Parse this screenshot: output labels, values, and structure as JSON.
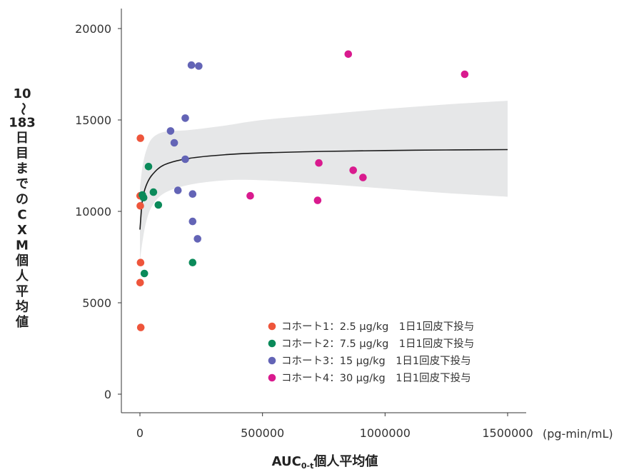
{
  "chart_data": {
    "type": "scatter",
    "xlabel": "AUC0-t個人平均値",
    "xlabel_main": "AUC",
    "xlabel_sub": "0-t",
    "xlabel_rest": "個人平均値",
    "ylabel": "10〜183日目までのCXM個人平均値",
    "x_unit": "(pg-min/mL)",
    "xlim": [
      0,
      1500000
    ],
    "ylim": [
      0,
      20000
    ],
    "x_ticks": [
      0,
      500000,
      1000000,
      1500000
    ],
    "x_tick_labels": [
      "0",
      "500000",
      "1000000",
      "1500000"
    ],
    "y_ticks": [
      0,
      5000,
      10000,
      15000,
      20000
    ],
    "y_tick_labels": [
      "0",
      "5000",
      "10000",
      "15000",
      "20000"
    ],
    "legend_position": "bottom-right",
    "colors": {
      "cohort1": "#ee553b",
      "cohort2": "#0b8a5a",
      "cohort3": "#6364b6",
      "cohort4": "#d91a8e",
      "band": "#e6e7e8",
      "curve": "#1a1a1a"
    },
    "series": [
      {
        "name": "コホート1：2.5 µg/kg　1日1回皮下投与",
        "color": "#ee553b",
        "points": [
          [
            2000,
            14000
          ],
          [
            1000,
            10850
          ],
          [
            1500,
            10300
          ],
          [
            2500,
            7200
          ],
          [
            1000,
            6100
          ],
          [
            3500,
            3650
          ]
        ]
      },
      {
        "name": "コホート2：7.5 µg/kg　1日1回皮下投与",
        "color": "#0b8a5a",
        "points": [
          [
            35000,
            12450
          ],
          [
            10000,
            10900
          ],
          [
            15000,
            10750
          ],
          [
            55000,
            11050
          ],
          [
            75000,
            10350
          ],
          [
            18000,
            6600
          ],
          [
            215000,
            7200
          ]
        ]
      },
      {
        "name": "コホート3：15 µg/kg　1日1回皮下投与",
        "color": "#6364b6",
        "points": [
          [
            210000,
            18000
          ],
          [
            240000,
            17950
          ],
          [
            185000,
            15100
          ],
          [
            125000,
            14400
          ],
          [
            140000,
            13750
          ],
          [
            185000,
            12850
          ],
          [
            155000,
            11150
          ],
          [
            215000,
            10950
          ],
          [
            215000,
            9450
          ],
          [
            235000,
            8500
          ]
        ]
      },
      {
        "name": "コホート4：30 µg/kg　1日1回皮下投与",
        "color": "#d91a8e",
        "points": [
          [
            850000,
            18600
          ],
          [
            1325000,
            17500
          ],
          [
            730000,
            12650
          ],
          [
            870000,
            12250
          ],
          [
            910000,
            11850
          ],
          [
            450000,
            10850
          ],
          [
            725000,
            10600
          ]
        ]
      }
    ],
    "fit_curve": [
      [
        0,
        9000
      ],
      [
        10000,
        10600
      ],
      [
        25000,
        11400
      ],
      [
        50000,
        12000
      ],
      [
        100000,
        12550
      ],
      [
        200000,
        12900
      ],
      [
        350000,
        13100
      ],
      [
        500000,
        13200
      ],
      [
        750000,
        13280
      ],
      [
        1000000,
        13330
      ],
      [
        1250000,
        13360
      ],
      [
        1500000,
        13380
      ]
    ],
    "confidence_band_upper": [
      [
        0,
        11300
      ],
      [
        10000,
        12400
      ],
      [
        25000,
        13300
      ],
      [
        50000,
        14000
      ],
      [
        100000,
        14350
      ],
      [
        200000,
        14450
      ],
      [
        350000,
        14700
      ],
      [
        500000,
        15000
      ],
      [
        750000,
        15300
      ],
      [
        1000000,
        15600
      ],
      [
        1250000,
        15850
      ],
      [
        1500000,
        16050
      ]
    ],
    "confidence_band_lower": [
      [
        0,
        7300
      ],
      [
        10000,
        8300
      ],
      [
        25000,
        9400
      ],
      [
        50000,
        10300
      ],
      [
        100000,
        11000
      ],
      [
        200000,
        11450
      ],
      [
        350000,
        11700
      ],
      [
        500000,
        11700
      ],
      [
        750000,
        11500
      ],
      [
        1000000,
        11250
      ],
      [
        1250000,
        11000
      ],
      [
        1500000,
        10800
      ]
    ]
  }
}
